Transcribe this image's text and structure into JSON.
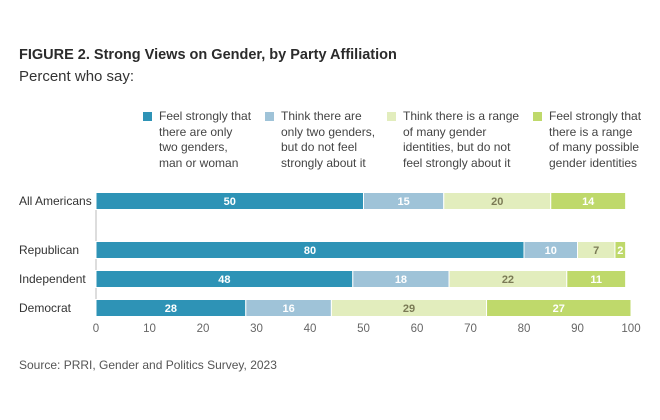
{
  "title": "FIGURE 2.  Strong Views on Gender, by Party Affiliation",
  "subtitle": "Percent who say:",
  "source": "Source: PRRI, Gender and Politics Survey, 2023",
  "chart_data": {
    "type": "bar",
    "orientation": "horizontal",
    "stacked": true,
    "categories": [
      "All Americans",
      "Republican",
      "Independent",
      "Democrat"
    ],
    "series": [
      {
        "name": "Feel strongly that\nthere are only\ntwo genders,\nman or woman",
        "color": "#2e93b6",
        "label_color": "#ffffff",
        "values": [
          50,
          80,
          48,
          28
        ]
      },
      {
        "name": "Think there are\nonly two genders,\nbut do not feel\nstrongly about it",
        "color": "#9fc3d8",
        "label_color": "#ffffff",
        "values": [
          15,
          10,
          18,
          16
        ]
      },
      {
        "name": "Think there is a range\nof many gender\nidentities, but do not\nfeel strongly about it",
        "color": "#e2edbd",
        "label_color": "#7a7a55",
        "values": [
          20,
          7,
          22,
          29
        ]
      },
      {
        "name": "Feel strongly that\nthere is a range\nof many possible\ngender identities",
        "color": "#bfd96b",
        "label_color": "#ffffff",
        "values": [
          14,
          2,
          11,
          27
        ]
      }
    ],
    "xlim": [
      0,
      100
    ],
    "xticks": [
      0,
      10,
      20,
      30,
      40,
      50,
      60,
      70,
      80,
      90,
      100
    ],
    "grid": false,
    "legend_position": "top"
  }
}
